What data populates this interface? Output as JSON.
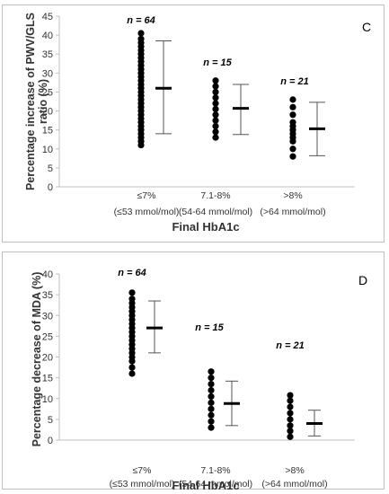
{
  "chart_data": [
    {
      "type": "scatter",
      "panel_label": "C",
      "ylabel": "Percentage increase of PWV/GLS ratio (%)",
      "ylabel_lines": [
        "Percentage increase of PWV/GLS",
        "ratio (%)"
      ],
      "xlabel": "Final HbA1c",
      "ylim": [
        0,
        45
      ],
      "yticks": [
        0,
        5,
        10,
        15,
        20,
        25,
        30,
        35,
        40,
        45
      ],
      "categories": [
        {
          "line1": "≤7%",
          "line2": "(≤53 mmol/mol)"
        },
        {
          "line1": "7.1-8%",
          "line2": "(54-64 mmol/mol)"
        },
        {
          "line1": ">8%",
          "line2": "(>64 mmol/mol)"
        }
      ],
      "n_labels": [
        "n = 64",
        "n = 15",
        "n = 21"
      ],
      "groups": [
        {
          "points": [
            11,
            12,
            13,
            14,
            15,
            16,
            17,
            18,
            19,
            20,
            21,
            22,
            23,
            24,
            25,
            26,
            27,
            28,
            29,
            30,
            31,
            32,
            33,
            34,
            35,
            36,
            37,
            38,
            39,
            40.5
          ],
          "mean": 26,
          "lower": 14,
          "upper": 38.5
        },
        {
          "points": [
            13,
            14.5,
            16,
            17.5,
            19,
            20.5,
            22,
            23.5,
            25,
            26.5,
            28
          ],
          "mean": 20.7,
          "lower": 13.8,
          "upper": 27
        },
        {
          "points": [
            8,
            10,
            12,
            13,
            14,
            15,
            16,
            17,
            19,
            21,
            23
          ],
          "mean": 15.3,
          "lower": 8.2,
          "upper": 22.3
        }
      ],
      "grid": false,
      "legend": "none"
    },
    {
      "type": "scatter",
      "panel_label": "D",
      "ylabel": "Percentage decrease of MDA (%)",
      "ylabel_lines": [
        "Percentage decrease of MDA (%)"
      ],
      "xlabel": "Final HbA1c",
      "ylim": [
        0,
        40
      ],
      "yticks": [
        0,
        5,
        10,
        15,
        20,
        25,
        30,
        35,
        40
      ],
      "categories": [
        {
          "line1": "≤7%",
          "line2": "(≤53 mmol/mol)"
        },
        {
          "line1": "7.1-8%",
          "line2": "(54-64 mmol/mol)"
        },
        {
          "line1": ">8%",
          "line2": "(>64 mmol/mol)"
        }
      ],
      "n_labels": [
        "n = 64",
        "n = 15",
        "n = 21"
      ],
      "groups": [
        {
          "points": [
            16,
            17.5,
            19,
            20,
            21,
            22,
            23,
            24,
            25,
            26,
            27,
            28,
            29,
            30,
            31,
            32,
            33,
            34,
            35.5
          ],
          "mean": 27,
          "lower": 21,
          "upper": 33.5
        },
        {
          "points": [
            3,
            4.5,
            6,
            7.5,
            9,
            10.5,
            12,
            13.5,
            15,
            16.5
          ],
          "mean": 8.8,
          "lower": 3.5,
          "upper": 14.2
        },
        {
          "points": [
            0.8,
            2.2,
            3.5,
            5,
            6.5,
            8,
            9.5,
            10.8
          ],
          "mean": 4,
          "lower": 1,
          "upper": 7.2
        }
      ],
      "grid": false,
      "legend": "none"
    }
  ]
}
